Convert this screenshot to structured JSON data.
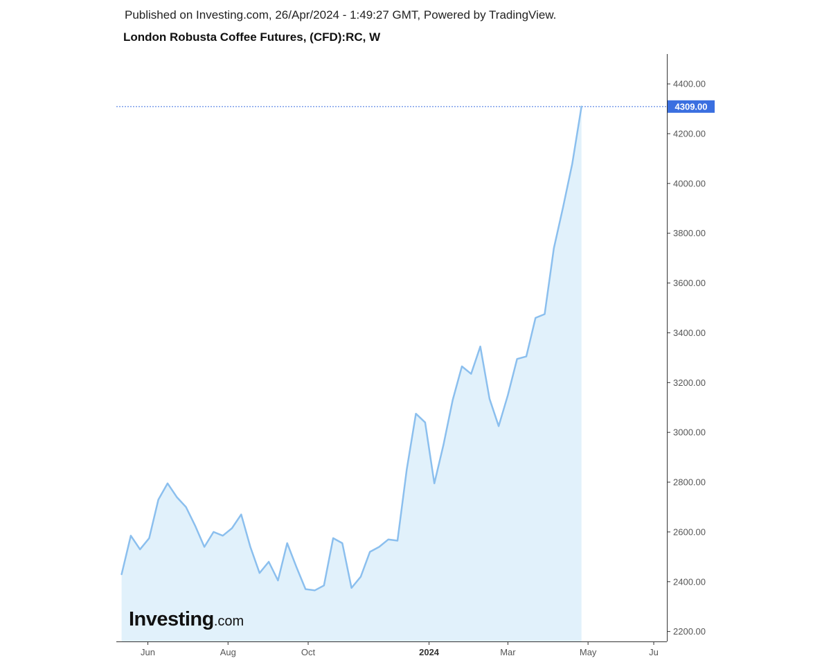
{
  "header": {
    "published": "Published on Investing.com, 26/Apr/2024 - 1:49:27 GMT, Powered by TradingView.",
    "title": "London Robusta Coffee Futures, (CFD):RC, W"
  },
  "logo": {
    "main": "Investing",
    "suffix": ".com"
  },
  "colors": {
    "line": "#8bbfee",
    "area": "#e1f1fb",
    "price_tag": "#3a6fe0",
    "price_line": "#3a6fe0",
    "axis": "#333333"
  },
  "chart_data": {
    "type": "area",
    "ylim": [
      2160,
      4520
    ],
    "y_ticks": [
      "4400.00",
      "4200.00",
      "4000.00",
      "3800.00",
      "3600.00",
      "3400.00",
      "3200.00",
      "3000.00",
      "2800.00",
      "2600.00",
      "2400.00",
      "2200.00"
    ],
    "x_range": [
      "2023-05-08",
      "2024-06-30"
    ],
    "x_ticks": [
      {
        "label": "Jun",
        "date": "2023-06-01",
        "bold": false
      },
      {
        "label": "Aug",
        "date": "2023-08-01",
        "bold": false
      },
      {
        "label": "Oct",
        "date": "2023-10-01",
        "bold": false
      },
      {
        "label": "2024",
        "date": "2024-01-01",
        "bold": true
      },
      {
        "label": "Mar",
        "date": "2024-03-01",
        "bold": false
      },
      {
        "label": "May",
        "date": "2024-05-01",
        "bold": false
      },
      {
        "label": "Ju",
        "date": "2024-06-20",
        "bold": false
      }
    ],
    "last_price": {
      "value": 4309,
      "label": "4309.00"
    },
    "series": [
      {
        "x": [
          "2023-05-12",
          "2023-05-19",
          "2023-05-26",
          "2023-06-02",
          "2023-06-09",
          "2023-06-16",
          "2023-06-23",
          "2023-06-30",
          "2023-07-07",
          "2023-07-14",
          "2023-07-21",
          "2023-07-28",
          "2023-08-04",
          "2023-08-11",
          "2023-08-18",
          "2023-08-25",
          "2023-09-01",
          "2023-09-08",
          "2023-09-15",
          "2023-09-22",
          "2023-09-29",
          "2023-10-06",
          "2023-10-13",
          "2023-10-20",
          "2023-10-27",
          "2023-11-03",
          "2023-11-10",
          "2023-11-17",
          "2023-11-24",
          "2023-12-01",
          "2023-12-08",
          "2023-12-15",
          "2023-12-22",
          "2023-12-29",
          "2024-01-05",
          "2024-01-12",
          "2024-01-19",
          "2024-01-26",
          "2024-02-02",
          "2024-02-09",
          "2024-02-16",
          "2024-02-23",
          "2024-03-01",
          "2024-03-08",
          "2024-03-15",
          "2024-03-22",
          "2024-03-29",
          "2024-04-05",
          "2024-04-12",
          "2024-04-19",
          "2024-04-26"
        ],
        "values": [
          2430,
          2585,
          2530,
          2575,
          2730,
          2795,
          2740,
          2700,
          2625,
          2540,
          2600,
          2585,
          2615,
          2670,
          2540,
          2435,
          2480,
          2405,
          2555,
          2460,
          2370,
          2365,
          2385,
          2575,
          2555,
          2375,
          2420,
          2520,
          2540,
          2570,
          2565,
          2850,
          3075,
          3040,
          2795,
          2950,
          3130,
          3265,
          3235,
          3345,
          3135,
          3025,
          3150,
          3295,
          3305,
          3460,
          3475,
          3740,
          3905,
          4080,
          4309
        ]
      }
    ]
  }
}
